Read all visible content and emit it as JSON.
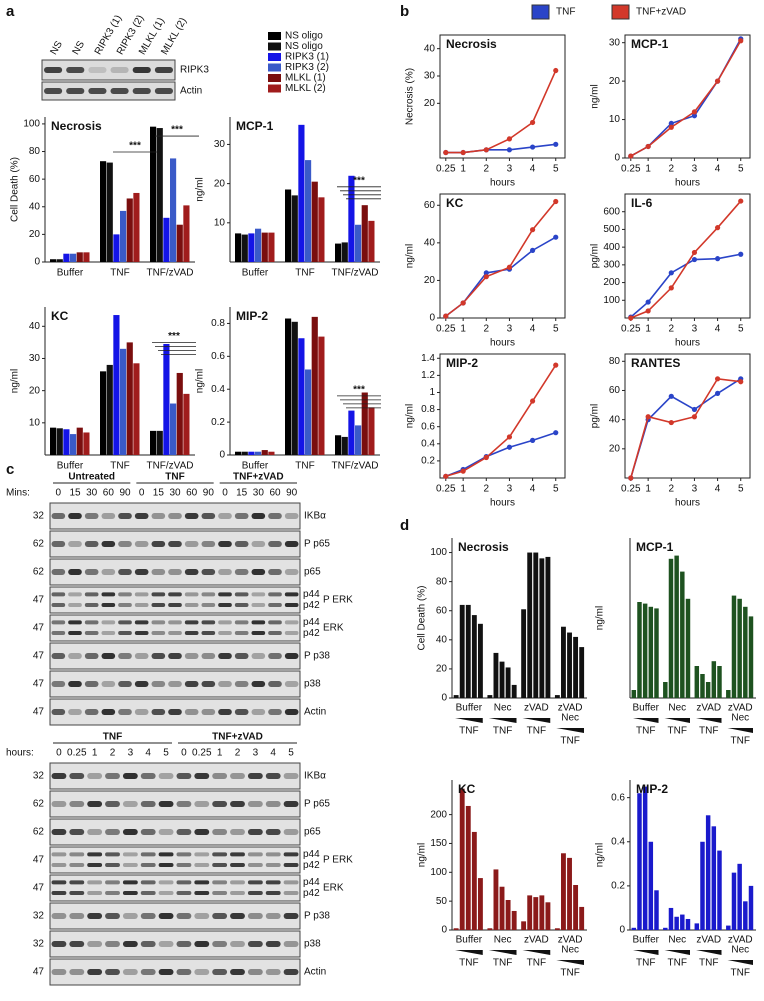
{
  "panel_labels": [
    "a",
    "b",
    "c",
    "d"
  ],
  "blot_a": {
    "lanes": [
      "NS",
      "NS",
      "RIPK3 (1)",
      "RIPK3 (2)",
      "MLKL (1)",
      "MLKL (2)"
    ],
    "rows": [
      "RIPK3",
      "Actin"
    ]
  },
  "legend_a": [
    {
      "name": "NS oligo",
      "color": "#000000"
    },
    {
      "name": "NS oligo",
      "color": "#111111"
    },
    {
      "name": "RIPK3 (1)",
      "color": "#1414e6"
    },
    {
      "name": "RIPK3 (2)",
      "color": "#3a5ac8"
    },
    {
      "name": "MLKL (1)",
      "color": "#7a0e0e"
    },
    {
      "name": "MLKL (2)",
      "color": "#a01c1c"
    }
  ],
  "legend_b": [
    {
      "name": "TNF",
      "color": "#2a44c8"
    },
    {
      "name": "TNF+zVAD",
      "color": "#d2382a"
    }
  ],
  "chart_data": [
    {
      "type": "bar",
      "title": "Necrosis",
      "ylabel": "Cell Death (%)",
      "categories": [
        "Buffer",
        "TNF",
        "TNF/zVAD"
      ],
      "series": [
        {
          "values": [
            2,
            73,
            98
          ]
        },
        {
          "values": [
            2,
            72,
            97
          ]
        },
        {
          "values": [
            6,
            20,
            32
          ]
        },
        {
          "values": [
            6,
            37,
            75
          ]
        },
        {
          "values": [
            7,
            46,
            27
          ]
        },
        {
          "values": [
            7,
            50,
            41
          ]
        }
      ],
      "ylim": [
        0,
        105
      ],
      "yticks": [
        0,
        20,
        40,
        60,
        80,
        100
      ],
      "annotations": [
        "***",
        "***"
      ]
    },
    {
      "type": "bar",
      "title": "MCP-1",
      "ylabel": "ng/ml",
      "categories": [
        "Buffer",
        "TNF",
        "TNF/zVAD"
      ],
      "series": [
        {
          "values": [
            7.3,
            18.5,
            4.7
          ]
        },
        {
          "values": [
            7,
            17,
            5
          ]
        },
        {
          "values": [
            7.3,
            35,
            22
          ]
        },
        {
          "values": [
            8.5,
            26,
            9.5
          ]
        },
        {
          "values": [
            7.5,
            20.5,
            14.5
          ]
        },
        {
          "values": [
            7.5,
            16.5,
            10.5
          ]
        }
      ],
      "ylim": [
        0,
        37
      ],
      "yticks": [
        10,
        20,
        30
      ],
      "annotations": [
        "***"
      ]
    },
    {
      "type": "bar",
      "title": "KC",
      "ylabel": "ng/ml",
      "categories": [
        "Buffer",
        "TNF",
        "TNF/zVAD"
      ],
      "series": [
        {
          "values": [
            8.5,
            26,
            7.5
          ]
        },
        {
          "values": [
            8.3,
            28,
            7.5
          ]
        },
        {
          "values": [
            8,
            43.5,
            34.5
          ]
        },
        {
          "values": [
            6.5,
            33,
            16
          ]
        },
        {
          "values": [
            8.5,
            35,
            25.5
          ]
        },
        {
          "values": [
            7,
            28.5,
            19
          ]
        }
      ],
      "ylim": [
        0,
        46
      ],
      "yticks": [
        10,
        20,
        30,
        40
      ],
      "annotations": [
        "***"
      ]
    },
    {
      "type": "bar",
      "title": "MIP-2",
      "ylabel": "ng/ml",
      "categories": [
        "Buffer",
        "TNF",
        "TNF/zVAD"
      ],
      "series": [
        {
          "values": [
            0.02,
            0.83,
            0.12
          ]
        },
        {
          "values": [
            0.02,
            0.81,
            0.11
          ]
        },
        {
          "values": [
            0.02,
            0.71,
            0.27
          ]
        },
        {
          "values": [
            0.02,
            0.52,
            0.18
          ]
        },
        {
          "values": [
            0.03,
            0.84,
            0.38
          ]
        },
        {
          "values": [
            0.02,
            0.72,
            0.29
          ]
        }
      ],
      "ylim": [
        0,
        0.9
      ],
      "yticks": [
        0,
        0.2,
        0.4,
        0.6,
        0.8
      ],
      "annotations": [
        "***"
      ]
    },
    {
      "type": "line",
      "title": "Necrosis",
      "ylabel": "Necrosis (%)",
      "xlabel": "hours",
      "x": [
        0.25,
        1,
        2,
        3,
        4,
        5
      ],
      "xlim": [
        0,
        5.4
      ],
      "xticks": [
        0.25,
        1,
        2,
        3,
        4,
        5
      ],
      "series": [
        {
          "values": [
            2,
            2,
            3,
            3,
            4,
            5
          ]
        },
        {
          "values": [
            2,
            2,
            3,
            7,
            13,
            32
          ]
        }
      ],
      "ylim": [
        0,
        45
      ],
      "yticks": [
        20,
        30,
        40
      ]
    },
    {
      "type": "line",
      "title": "MCP-1",
      "ylabel": "ng/ml",
      "xlabel": "hours",
      "x": [
        0.25,
        1,
        2,
        3,
        4,
        5
      ],
      "xlim": [
        0,
        5.4
      ],
      "xticks": [
        0.25,
        1,
        2,
        3,
        4,
        5
      ],
      "series": [
        {
          "values": [
            0.5,
            3,
            9,
            11,
            20,
            31
          ]
        },
        {
          "values": [
            0.5,
            3,
            8,
            12,
            20,
            30.5
          ]
        }
      ],
      "ylim": [
        0,
        32
      ],
      "yticks": [
        0,
        10,
        20,
        30
      ]
    },
    {
      "type": "line",
      "title": "KC",
      "ylabel": "ng/ml",
      "xlabel": "hours",
      "x": [
        0.25,
        1,
        2,
        3,
        4,
        5
      ],
      "xlim": [
        0,
        5.4
      ],
      "xticks": [
        0.25,
        1,
        2,
        3,
        4,
        5
      ],
      "series": [
        {
          "values": [
            1,
            8,
            24,
            26,
            36,
            43
          ]
        },
        {
          "values": [
            1,
            8,
            22,
            27,
            47,
            62
          ]
        }
      ],
      "ylim": [
        0,
        66
      ],
      "yticks": [
        0,
        20,
        40,
        60
      ]
    },
    {
      "type": "line",
      "title": "IL-6",
      "ylabel": "pg/ml",
      "xlabel": "hours",
      "x": [
        0.25,
        1,
        2,
        3,
        4,
        5
      ],
      "xlim": [
        0,
        5.4
      ],
      "xticks": [
        0.25,
        1,
        2,
        3,
        4,
        5
      ],
      "series": [
        {
          "values": [
            5,
            90,
            255,
            330,
            335,
            360
          ]
        },
        {
          "values": [
            0,
            40,
            170,
            370,
            510,
            660
          ]
        }
      ],
      "ylim": [
        0,
        700
      ],
      "yticks": [
        100,
        200,
        300,
        400,
        500,
        600
      ]
    },
    {
      "type": "line",
      "title": "MIP-2",
      "ylabel": "ng/ml",
      "xlabel": "hours",
      "x": [
        0.25,
        1,
        2,
        3,
        4,
        5
      ],
      "xlim": [
        0,
        5.4
      ],
      "xticks": [
        0.25,
        1,
        2,
        3,
        4,
        5
      ],
      "series": [
        {
          "values": [
            0.02,
            0.1,
            0.25,
            0.36,
            0.44,
            0.53
          ]
        },
        {
          "values": [
            0.02,
            0.08,
            0.24,
            0.48,
            0.9,
            1.32
          ]
        }
      ],
      "ylim": [
        0,
        1.45
      ],
      "yticks": [
        0.2,
        0.4,
        0.6,
        0.8,
        1,
        1.2,
        1.4
      ]
    },
    {
      "type": "line",
      "title": "RANTES",
      "ylabel": "pg/ml",
      "xlabel": "hours",
      "x": [
        0.25,
        1,
        2,
        3,
        4,
        5
      ],
      "xlim": [
        0,
        5.4
      ],
      "xticks": [
        0.25,
        1,
        2,
        3,
        4,
        5
      ],
      "series": [
        {
          "values": [
            0,
            40,
            56,
            47,
            58,
            68
          ]
        },
        {
          "values": [
            0,
            42,
            38,
            42,
            68,
            66
          ]
        }
      ],
      "ylim": [
        0,
        85
      ],
      "yticks": [
        20,
        40,
        60,
        80
      ]
    },
    {
      "type": "bar",
      "title": "Necrosis",
      "ylabel": "Cell Death (%)",
      "color": "#111111",
      "ylim": [
        0,
        110
      ],
      "yticks": [
        0,
        20,
        40,
        60,
        80,
        100
      ],
      "groups": [
        {
          "label": [
            "Buffer"
          ],
          "sublabel": "TNF",
          "values": [
            2,
            64,
            64,
            57,
            51
          ]
        },
        {
          "label": [
            "Nec"
          ],
          "sublabel": "TNF",
          "values": [
            2,
            31,
            25,
            21,
            9
          ]
        },
        {
          "label": [
            "zVAD"
          ],
          "sublabel": "TNF",
          "values": [
            61,
            100,
            100,
            96,
            97
          ]
        },
        {
          "label": [
            "zVAD",
            "Nec"
          ],
          "sublabel": "TNF",
          "values": [
            2,
            49,
            45,
            42,
            35
          ]
        }
      ]
    },
    {
      "type": "bar",
      "title": "MCP-1",
      "ylabel": "ng/ml",
      "color": "#1e5220",
      "ylim": [
        0,
        100
      ],
      "groups": [
        {
          "label": [
            "Buffer"
          ],
          "sublabel": "TNF",
          "values": [
            5,
            60,
            59,
            57,
            56
          ]
        },
        {
          "label": [
            "Nec"
          ],
          "sublabel": "TNF",
          "values": [
            10,
            87,
            89,
            79,
            62
          ]
        },
        {
          "label": [
            "zVAD"
          ],
          "sublabel": "TNF",
          "values": [
            20,
            15,
            10,
            23,
            20
          ]
        },
        {
          "label": [
            "zVAD",
            "Nec"
          ],
          "sublabel": "TNF",
          "values": [
            5,
            64,
            62,
            57,
            51
          ]
        }
      ]
    },
    {
      "type": "bar",
      "title": "KC",
      "ylabel": "ng/ml",
      "color": "#8b1a1a",
      "ylim": [
        0,
        260
      ],
      "yticks": [
        0,
        50,
        100,
        150,
        200
      ],
      "groups": [
        {
          "label": [
            "Buffer"
          ],
          "sublabel": "TNF",
          "values": [
            3,
            245,
            215,
            170,
            90
          ]
        },
        {
          "label": [
            "Nec"
          ],
          "sublabel": "TNF",
          "values": [
            3,
            105,
            75,
            52,
            33
          ]
        },
        {
          "label": [
            "zVAD"
          ],
          "sublabel": "TNF",
          "values": [
            15,
            60,
            57,
            60,
            48
          ]
        },
        {
          "label": [
            "zVAD",
            "Nec"
          ],
          "sublabel": "TNF",
          "values": [
            3,
            133,
            125,
            78,
            40
          ]
        }
      ]
    },
    {
      "type": "bar",
      "title": "MIP-2",
      "ylabel": "ng/ml",
      "color": "#1a1acc",
      "ylim": [
        0,
        0.68
      ],
      "yticks": [
        0,
        0.2,
        0.4,
        0.6
      ],
      "groups": [
        {
          "label": [
            "Buffer"
          ],
          "sublabel": "TNF",
          "values": [
            0.01,
            0.62,
            0.65,
            0.4,
            0.18
          ]
        },
        {
          "label": [
            "Nec"
          ],
          "sublabel": "TNF",
          "values": [
            0.01,
            0.1,
            0.06,
            0.07,
            0.05
          ]
        },
        {
          "label": [
            "zVAD"
          ],
          "sublabel": "TNF",
          "values": [
            0.03,
            0.4,
            0.52,
            0.47,
            0.36
          ]
        },
        {
          "label": [
            "zVAD",
            "Nec"
          ],
          "sublabel": "TNF",
          "values": [
            0.02,
            0.26,
            0.3,
            0.13,
            0.2
          ]
        }
      ]
    }
  ],
  "blots_c": [
    {
      "axis_label": "Mins:",
      "groups": [
        {
          "name": "Untreated",
          "lanes": [
            0,
            15,
            30,
            60,
            90
          ]
        },
        {
          "name": "TNF",
          "lanes": [
            0,
            15,
            30,
            60,
            90
          ]
        },
        {
          "name": "TNF+zVAD",
          "lanes": [
            0,
            15,
            30,
            60,
            90
          ]
        }
      ],
      "rows": [
        {
          "name": "IKBα",
          "mw": 32
        },
        {
          "name": "P p65",
          "mw": 62
        },
        {
          "name": "p65",
          "mw": 62
        },
        {
          "name": "P ERK",
          "mw": 47,
          "bands": [
            "p44",
            "p42"
          ]
        },
        {
          "name": "ERK",
          "mw": 47,
          "bands": [
            "p44",
            "p42"
          ]
        },
        {
          "name": "P p38",
          "mw": 47
        },
        {
          "name": "p38",
          "mw": 47
        },
        {
          "name": "Actin",
          "mw": 47
        }
      ]
    },
    {
      "axis_label": "hours:",
      "groups": [
        {
          "name": "TNF",
          "lanes": [
            0,
            0.25,
            1,
            2,
            3,
            4,
            5
          ]
        },
        {
          "name": "TNF+zVAD",
          "lanes": [
            0,
            0.25,
            1,
            2,
            3,
            4,
            5
          ]
        }
      ],
      "rows": [
        {
          "name": "IKBα",
          "mw": 32
        },
        {
          "name": "P p65",
          "mw": 62
        },
        {
          "name": "p65",
          "mw": 62
        },
        {
          "name": "P ERK",
          "mw": 47,
          "bands": [
            "p44",
            "p42"
          ]
        },
        {
          "name": "ERK",
          "mw": 47,
          "bands": [
            "p44",
            "p42"
          ]
        },
        {
          "name": "P p38",
          "mw": 32
        },
        {
          "name": "p38",
          "mw": 32
        },
        {
          "name": "Actin",
          "mw": 47
        }
      ]
    }
  ]
}
